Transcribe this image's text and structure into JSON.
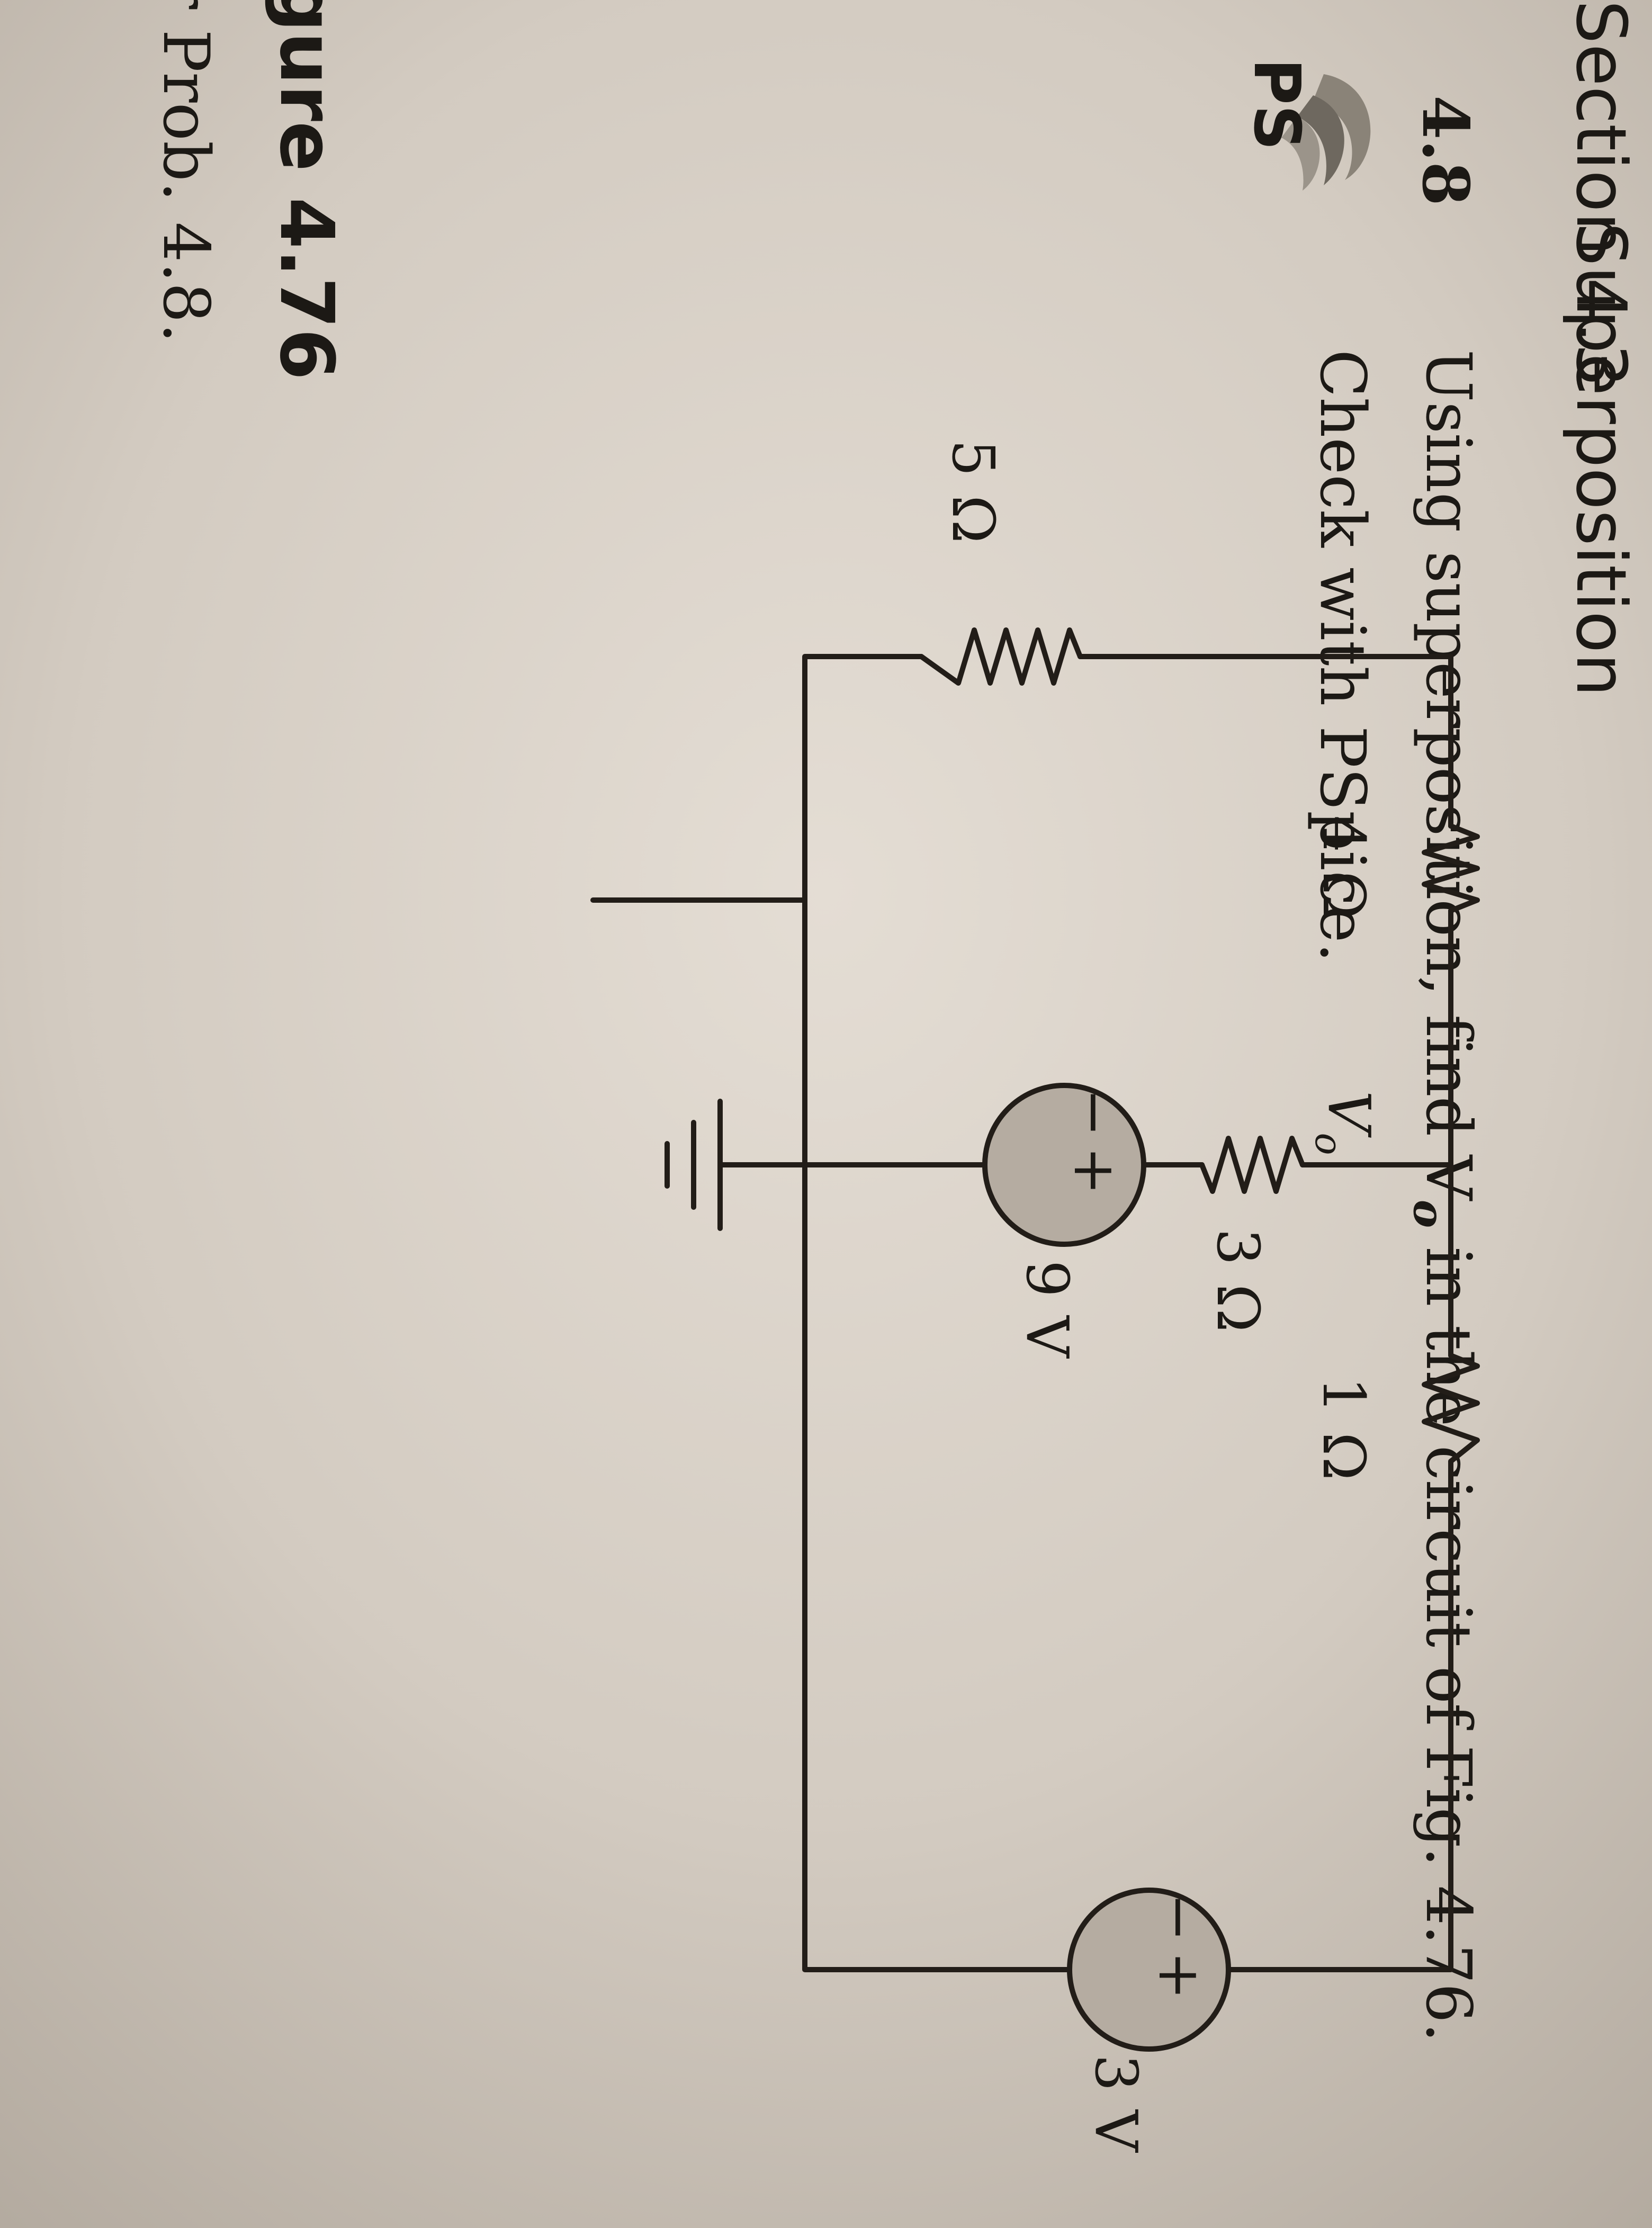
{
  "header": {
    "section_number": "Section 4.3",
    "section_title": "Superposition"
  },
  "problem": {
    "number": "4.8",
    "text_line_1": "Using superposition, find V",
    "text_line_1_sub": "o",
    "text_line_1_rest": " in the circuit of Fig. 4.76.",
    "text_line_2": "Check with PSpice.",
    "icon": "pspice-icon",
    "icon_label": "PS"
  },
  "circuit": {
    "resistors": {
      "r1": "4 Ω",
      "r2": "1 Ω",
      "r3": "3 Ω",
      "r4": "5 Ω"
    },
    "node_label": "V",
    "node_label_sub": "o",
    "sources": {
      "left": "9 V",
      "right": "3 V"
    },
    "polarity": {
      "plus": "+",
      "minus": "−"
    }
  },
  "figure": {
    "label": "gure 4.76",
    "caption": "r Prob. 4.8."
  },
  "colors": {
    "paper": "#d8d0c6",
    "ink": "#1c1915",
    "source_fill": "#b5aca1"
  }
}
